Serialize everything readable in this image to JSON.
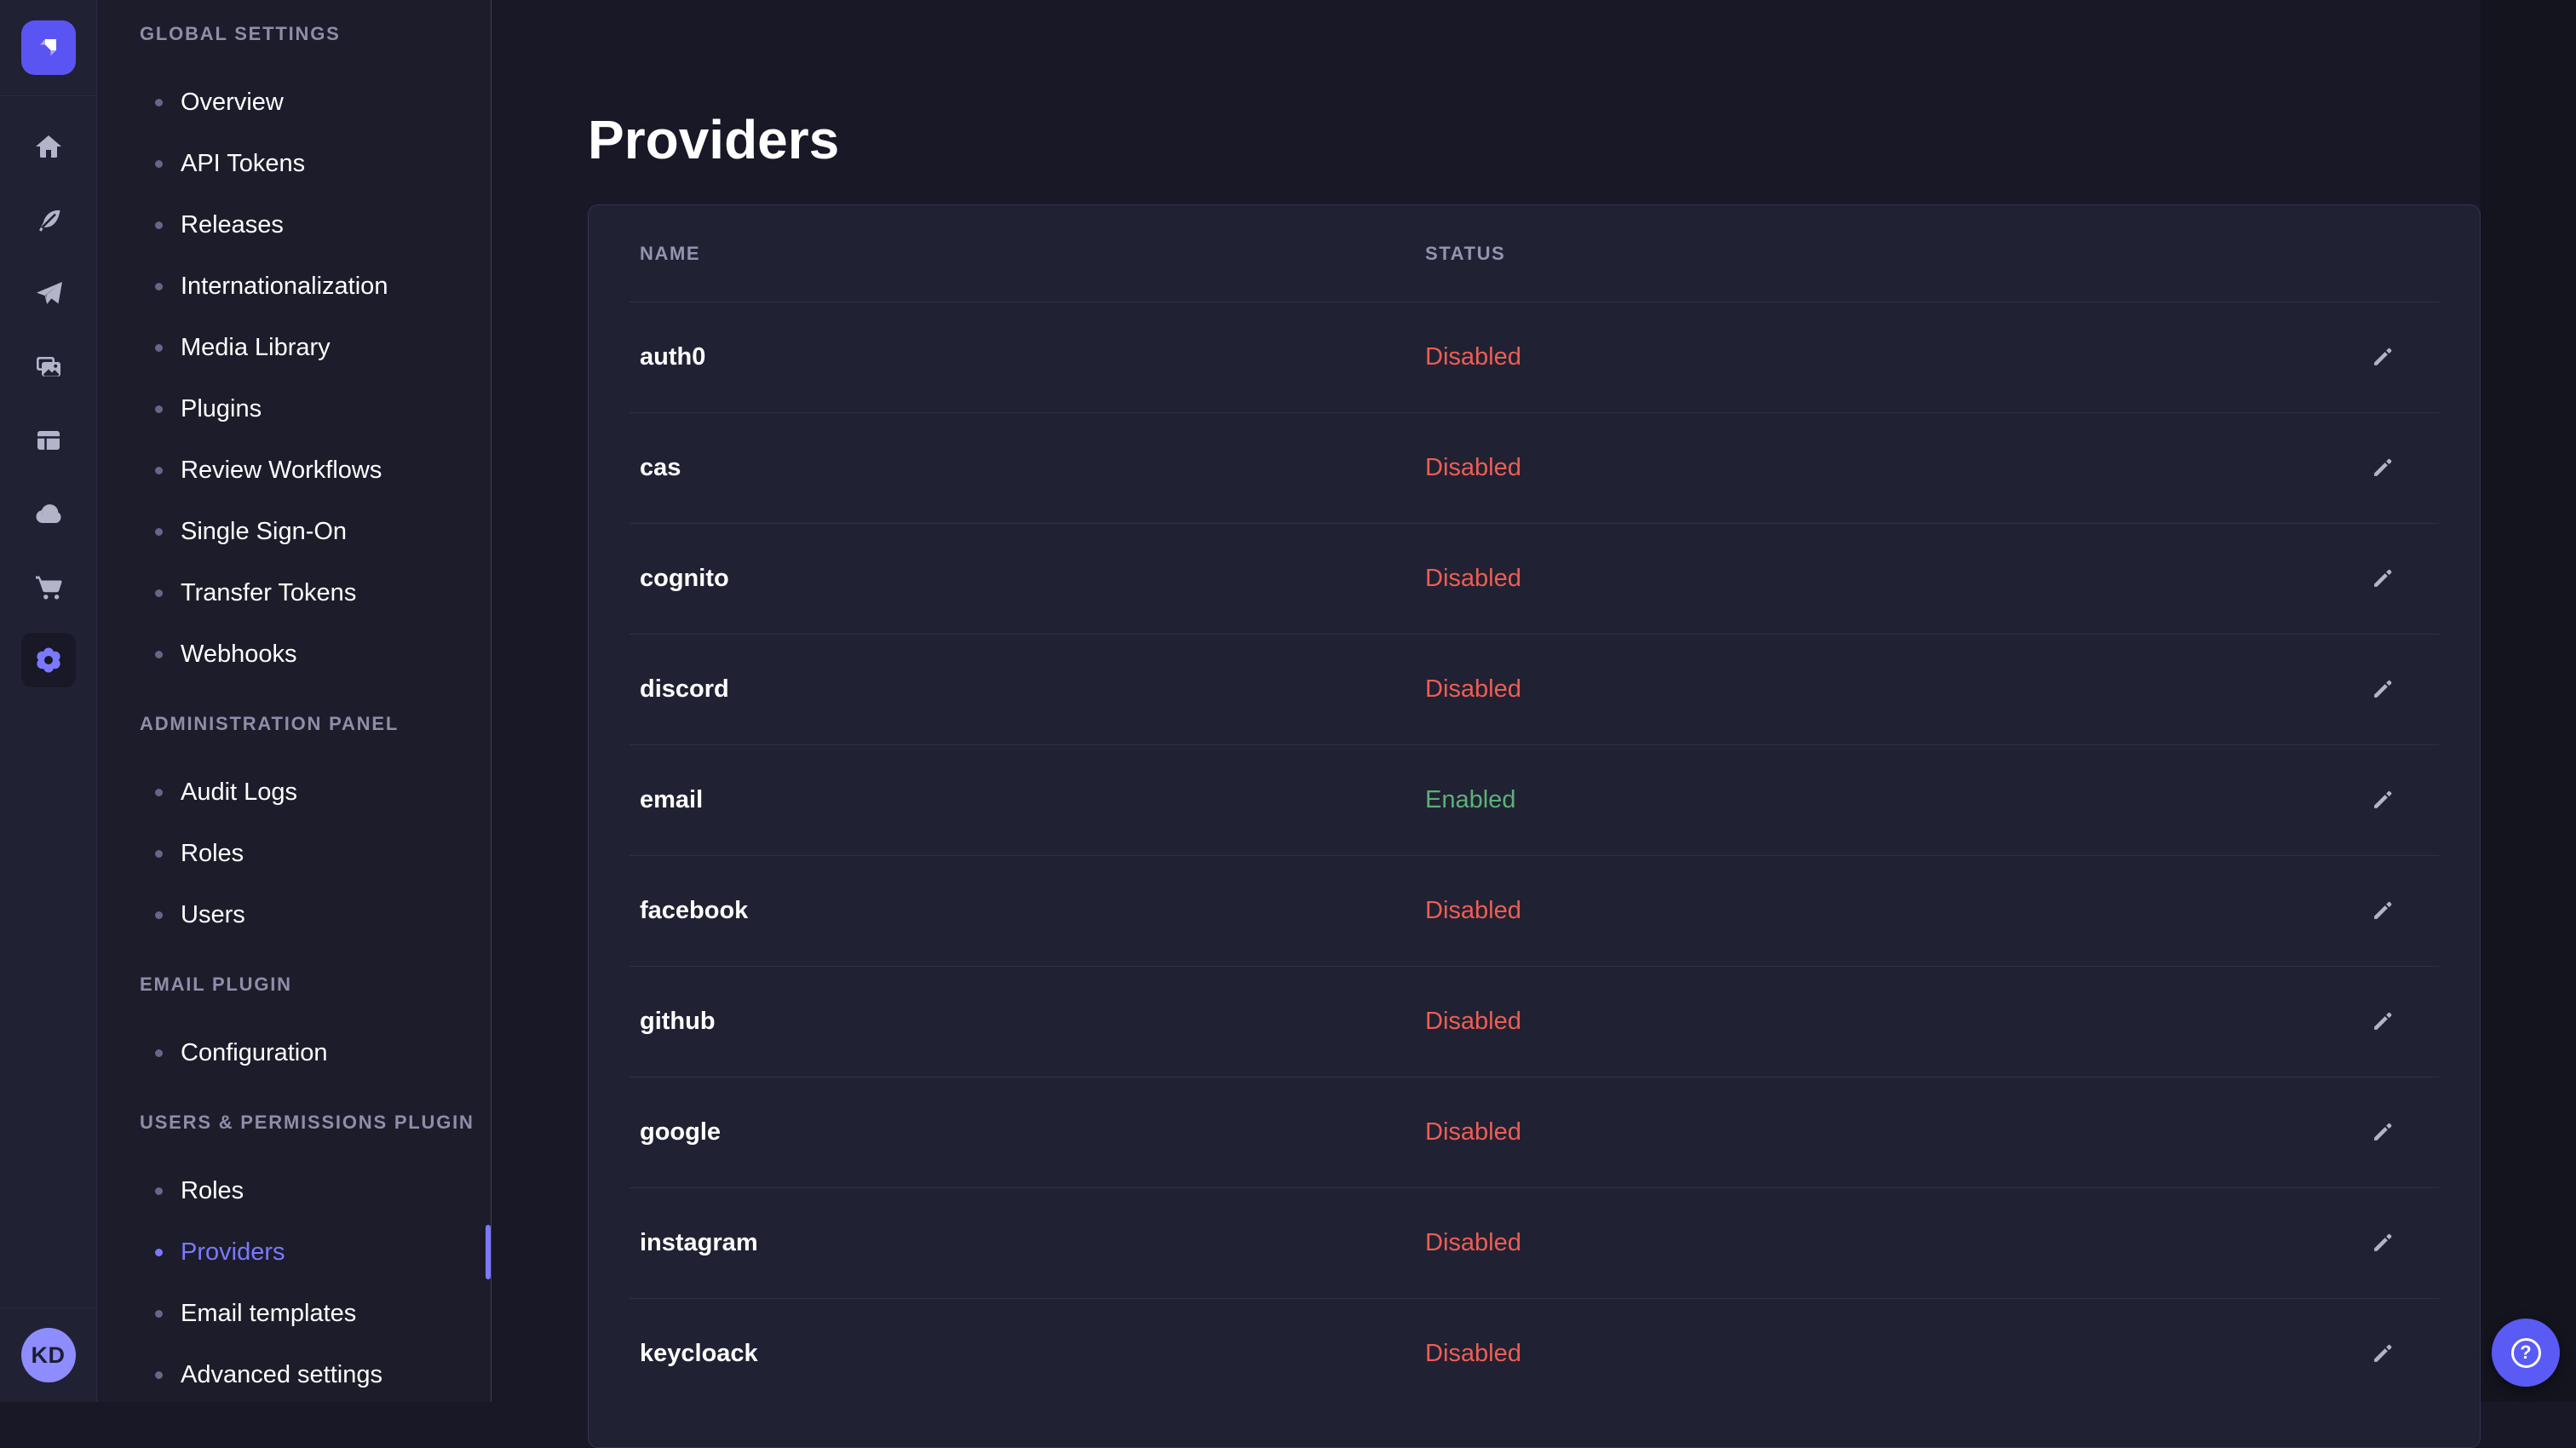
{
  "colors": {
    "accent": "#7b79ff",
    "danger": "#ee5e52",
    "success": "#5cb176",
    "logo_bg": "#5a55f2",
    "help_bg": "#5a5af5"
  },
  "rail": {
    "logo_icon": "strapi-logo-icon",
    "nav_icons": [
      {
        "name": "home-icon",
        "active": false
      },
      {
        "name": "feather-icon",
        "active": false
      },
      {
        "name": "paper-plane-icon",
        "active": false
      },
      {
        "name": "media-library-icon",
        "active": false
      },
      {
        "name": "content-manager-icon",
        "active": false
      },
      {
        "name": "cloud-icon",
        "active": false
      },
      {
        "name": "marketplace-cart-icon",
        "active": false
      },
      {
        "name": "settings-gear-icon",
        "active": true
      }
    ],
    "avatar_initials": "KD"
  },
  "settings_nav": {
    "sections": [
      {
        "label": "GLOBAL SETTINGS",
        "items": [
          {
            "label": "Overview",
            "active": false
          },
          {
            "label": "API Tokens",
            "active": false
          },
          {
            "label": "Releases",
            "active": false
          },
          {
            "label": "Internationalization",
            "active": false
          },
          {
            "label": "Media Library",
            "active": false
          },
          {
            "label": "Plugins",
            "active": false
          },
          {
            "label": "Review Workflows",
            "active": false
          },
          {
            "label": "Single Sign-On",
            "active": false
          },
          {
            "label": "Transfer Tokens",
            "active": false
          },
          {
            "label": "Webhooks",
            "active": false
          }
        ]
      },
      {
        "label": "ADMINISTRATION PANEL",
        "items": [
          {
            "label": "Audit Logs",
            "active": false
          },
          {
            "label": "Roles",
            "active": false
          },
          {
            "label": "Users",
            "active": false
          }
        ]
      },
      {
        "label": "EMAIL PLUGIN",
        "items": [
          {
            "label": "Configuration",
            "active": false
          }
        ]
      },
      {
        "label": "USERS & PERMISSIONS PLUGIN",
        "items": [
          {
            "label": "Roles",
            "active": false
          },
          {
            "label": "Providers",
            "active": true
          },
          {
            "label": "Email templates",
            "active": false
          },
          {
            "label": "Advanced settings",
            "active": false
          }
        ]
      }
    ]
  },
  "main": {
    "title": "Providers",
    "table": {
      "columns": [
        {
          "label": "NAME"
        },
        {
          "label": "STATUS"
        }
      ],
      "rows": [
        {
          "name": "auth0",
          "status": "Disabled"
        },
        {
          "name": "cas",
          "status": "Disabled"
        },
        {
          "name": "cognito",
          "status": "Disabled"
        },
        {
          "name": "discord",
          "status": "Disabled"
        },
        {
          "name": "email",
          "status": "Enabled"
        },
        {
          "name": "facebook",
          "status": "Disabled"
        },
        {
          "name": "github",
          "status": "Disabled"
        },
        {
          "name": "google",
          "status": "Disabled"
        },
        {
          "name": "instagram",
          "status": "Disabled"
        },
        {
          "name": "keycloack",
          "status": "Disabled"
        }
      ]
    }
  },
  "help_button": {
    "icon": "question-mark-icon",
    "glyph": "?"
  }
}
